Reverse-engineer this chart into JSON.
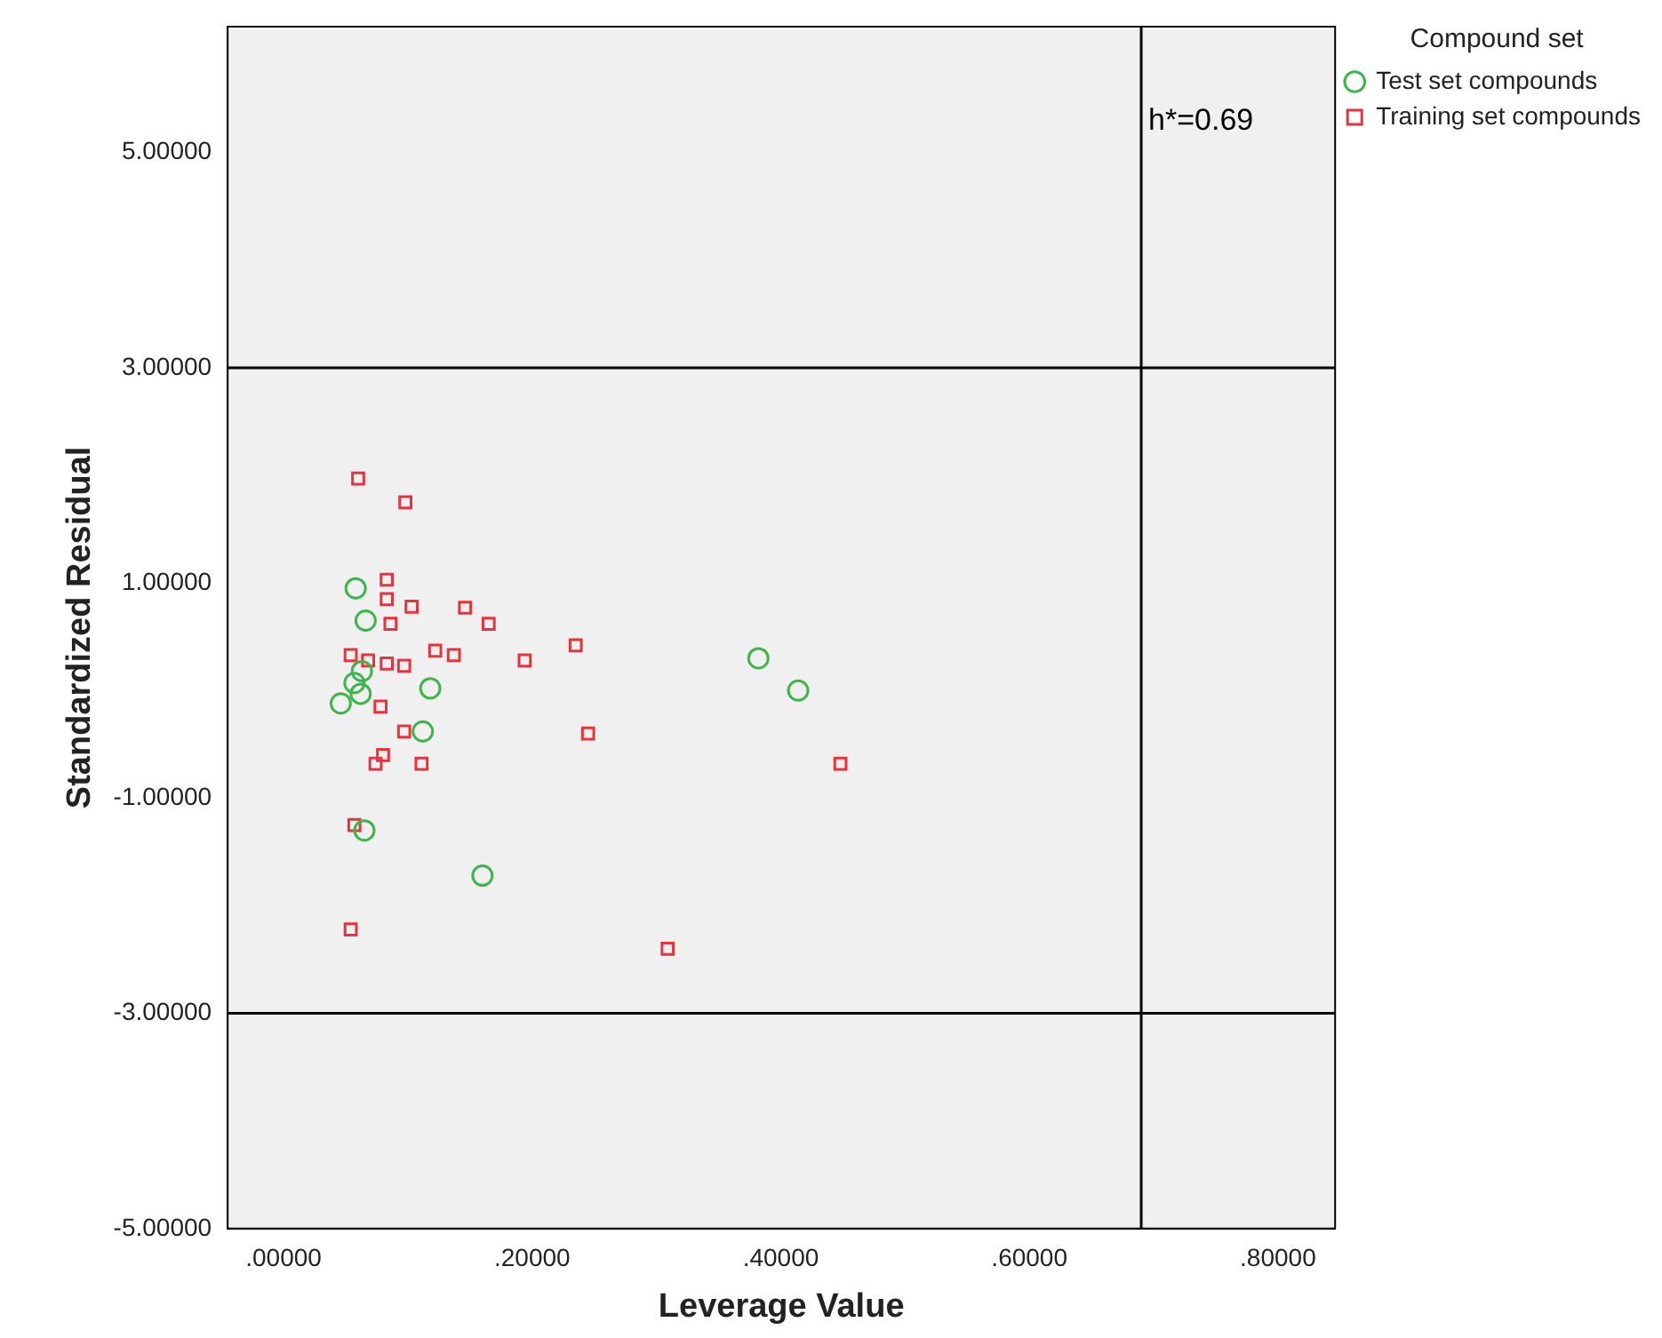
{
  "chart_data": {
    "type": "scatter",
    "xlabel": "Leverage Value",
    "ylabel": "Standardized Residual",
    "legend_title": "Compound set",
    "legend": "top right",
    "grid": false,
    "xlim": [
      -0.045,
      0.846
    ],
    "ylim": [
      -5,
      6.17
    ],
    "xticks": [
      {
        "value": 0,
        "label": ".00000"
      },
      {
        "value": 0.2,
        "label": ".20000"
      },
      {
        "value": 0.4,
        "label": ".40000"
      },
      {
        "value": 0.6,
        "label": ".60000"
      },
      {
        "value": 0.8,
        "label": ".80000"
      }
    ],
    "yticks": [
      {
        "value": -5,
        "label": "-5.00000"
      },
      {
        "value": -3,
        "label": "-3.00000"
      },
      {
        "value": -1,
        "label": "-1.00000"
      },
      {
        "value": 1,
        "label": "1.00000"
      },
      {
        "value": 3,
        "label": "3.00000"
      },
      {
        "value": 5,
        "label": "5.00000"
      }
    ],
    "ref_lines": [
      {
        "axis": "x",
        "value": 0.69,
        "label": "h*=0.69",
        "color": "#000000"
      },
      {
        "axis": "y",
        "value": 3,
        "color": "#000000"
      },
      {
        "axis": "y",
        "value": -3,
        "color": "#000000"
      }
    ],
    "series": [
      {
        "name": "Test set compounds",
        "color": "#3cb54a",
        "marker": "circle",
        "x": [
          0.058,
          0.066,
          0.063,
          0.057,
          0.062,
          0.046,
          0.118,
          0.112,
          0.065,
          0.16,
          0.382,
          0.414
        ],
        "values": [
          0.95,
          0.65,
          0.18,
          0.07,
          -0.03,
          -0.12,
          0.02,
          -0.38,
          -1.3,
          -1.72,
          0.3,
          0.0
        ]
      },
      {
        "name": "Training set compounds",
        "color": "#e8333c",
        "marker": "square",
        "x": [
          0.06,
          0.098,
          0.083,
          0.083,
          0.103,
          0.146,
          0.086,
          0.165,
          0.054,
          0.068,
          0.083,
          0.097,
          0.122,
          0.137,
          0.194,
          0.235,
          0.078,
          0.097,
          0.245,
          0.08,
          0.074,
          0.111,
          0.448,
          0.057,
          0.054,
          0.309
        ],
        "values": [
          1.97,
          1.75,
          1.03,
          0.85,
          0.78,
          0.77,
          0.62,
          0.62,
          0.33,
          0.28,
          0.25,
          0.23,
          0.37,
          0.33,
          0.28,
          0.42,
          -0.15,
          -0.38,
          -0.4,
          -0.6,
          -0.68,
          -0.68,
          -0.68,
          -1.25,
          -2.22,
          -2.4
        ]
      }
    ]
  }
}
